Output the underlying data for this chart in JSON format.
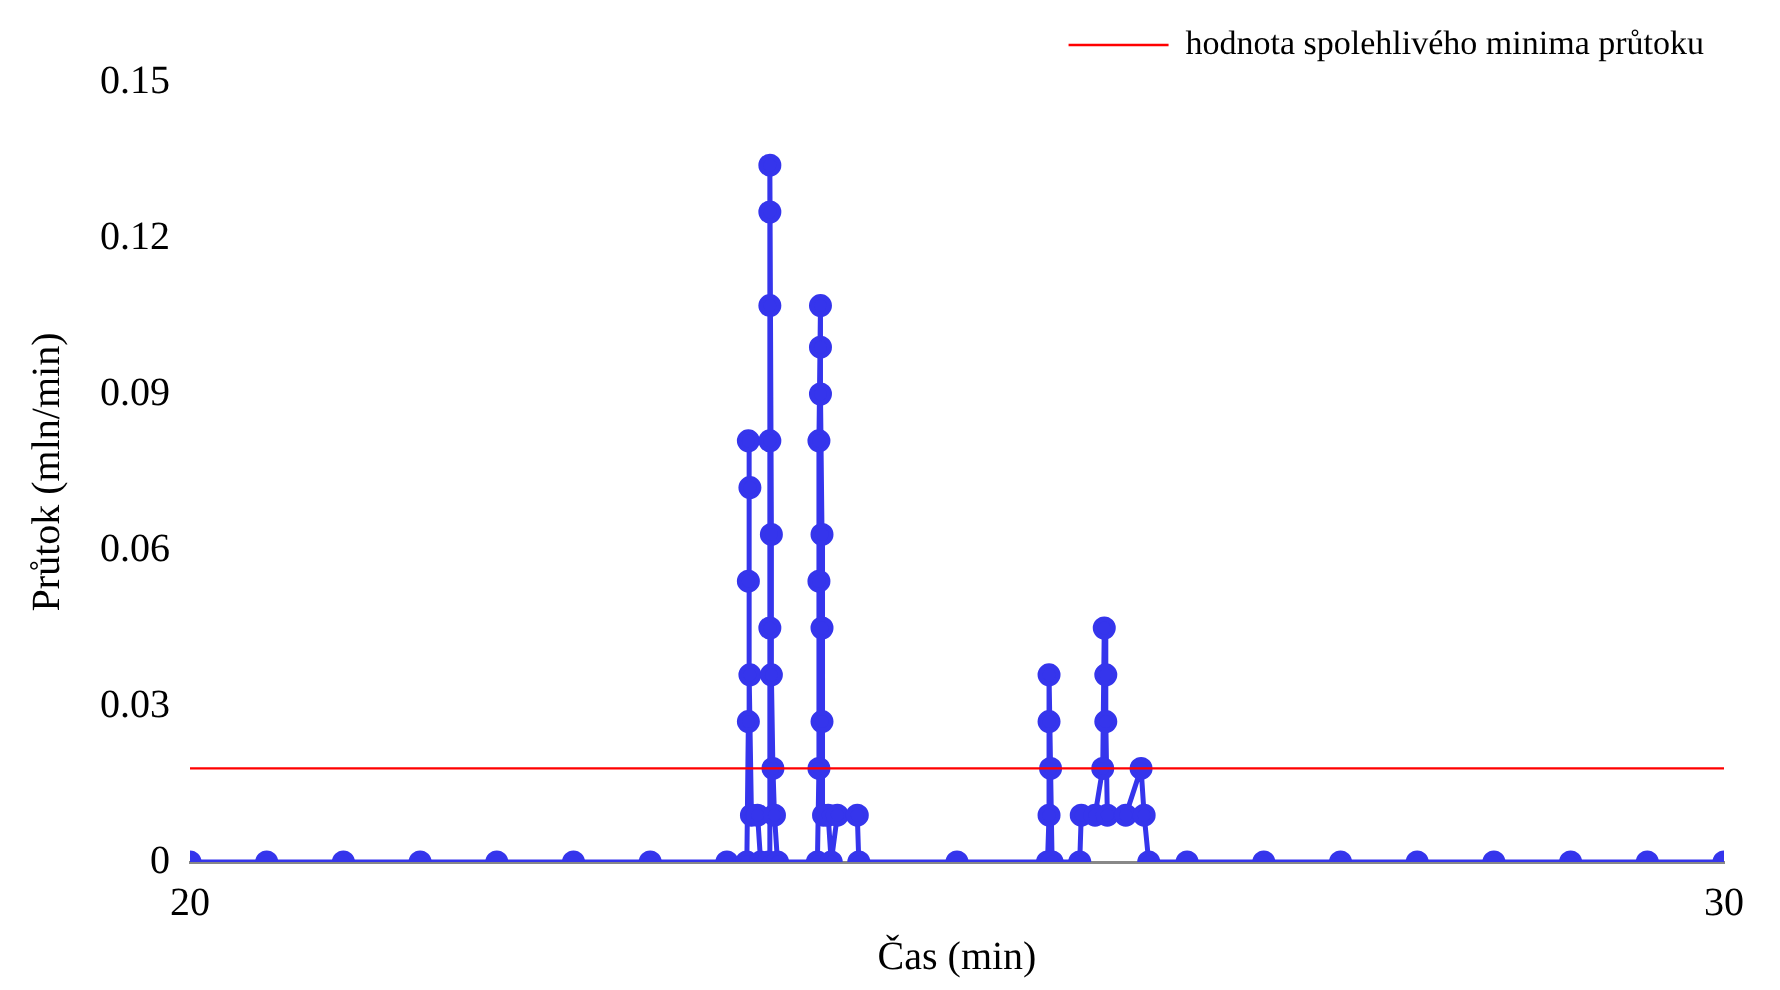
{
  "chart_data": {
    "type": "line",
    "xlabel": "Čas (min)",
    "ylabel": "Průtok (mln/min)",
    "x": [
      20,
      20.5,
      21,
      21.5,
      22,
      22.5,
      23,
      23.5,
      23.63,
      23.64,
      23.64,
      23.64,
      23.65,
      23.65,
      23.66,
      23.7,
      23.72,
      23.77,
      23.78,
      23.78,
      23.78,
      23.78,
      23.78,
      23.79,
      23.79,
      23.8,
      23.81,
      23.83,
      24.09,
      24.1,
      24.1,
      24.1,
      24.11,
      24.11,
      24.11,
      24.12,
      24.12,
      24.12,
      24.13,
      24.16,
      24.18,
      24.22,
      24.35,
      24.36,
      25,
      25.59,
      25.6,
      25.6,
      25.6,
      25.61,
      25.62,
      25.8,
      25.81,
      25.9,
      25.95,
      25.96,
      25.97,
      25.97,
      25.98,
      26.1,
      26.2,
      26.22,
      26.25,
      26.5,
      27,
      27.5,
      28,
      28.5,
      29,
      29.5,
      30
    ],
    "series": [
      {
        "color": "#3535ec",
        "values": [
          0,
          0,
          0,
          0,
          0,
          0,
          0,
          0,
          0,
          0.027,
          0.054,
          0.081,
          0.072,
          0.036,
          0.009,
          0.009,
          0,
          0,
          0.045,
          0.081,
          0.107,
          0.125,
          0.134,
          0.063,
          0.036,
          0.018,
          0.009,
          0,
          0,
          0.018,
          0.054,
          0.081,
          0.107,
          0.099,
          0.09,
          0.063,
          0.045,
          0.027,
          0.009,
          0.009,
          0,
          0.009,
          0.009,
          0,
          0,
          0,
          0.009,
          0.027,
          0.036,
          0.018,
          0,
          0,
          0.009,
          0.009,
          0.018,
          0.045,
          0.036,
          0.027,
          0.009,
          0.009,
          0.018,
          0.009,
          0,
          0,
          0,
          0,
          0,
          0,
          0,
          0,
          0
        ]
      }
    ],
    "xlim": [
      20,
      30
    ],
    "xticks": [
      20,
      30
    ],
    "ylim": [
      0,
      0.15
    ],
    "yticks": [
      {
        "value": 0,
        "label": "0"
      },
      0.03,
      0.06,
      0.09,
      0.12,
      0.15
    ],
    "ref_lines": [
      {
        "axis": "y",
        "value": 0.018,
        "label": "hodnota spolehlivého minima průtoku",
        "color": "#ff0000"
      }
    ],
    "legend": "top right",
    "grid": false,
    "marker": "circle",
    "line_style": "solid"
  }
}
